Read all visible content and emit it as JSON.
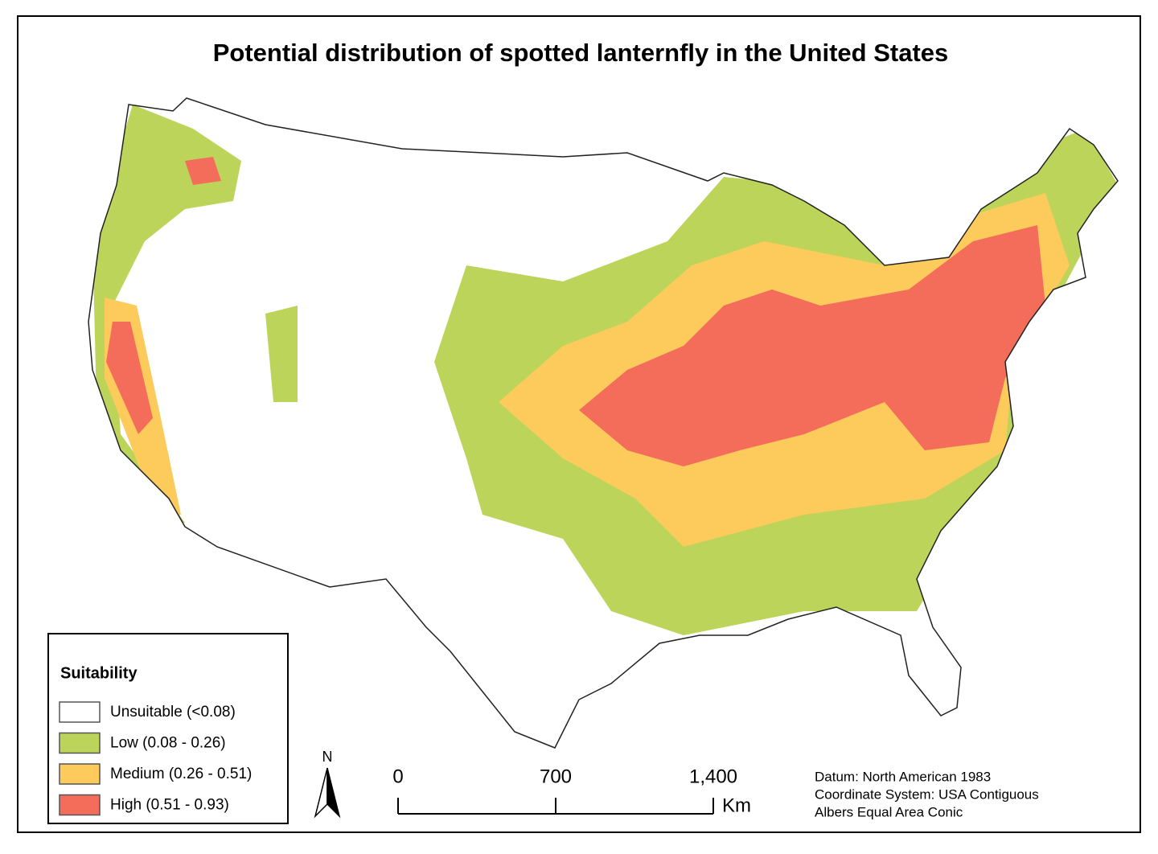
{
  "title": "Potential distribution of spotted lanternfly in the United States",
  "legend": {
    "title": "Suitability",
    "items": [
      {
        "label": "Unsuitable (<0.08)",
        "color": "#ffffff"
      },
      {
        "label": "Low (0.08 - 0.26)",
        "color": "#bcd45a"
      },
      {
        "label": "Medium (0.26 - 0.51)",
        "color": "#fdca5c"
      },
      {
        "label": "High (0.51 - 0.93)",
        "color": "#f46d5a"
      }
    ]
  },
  "north_arrow": "N",
  "scale_bar": {
    "ticks": [
      0,
      700,
      {
        "value": 1400,
        "label": "1,400"
      }
    ],
    "unit": "Km"
  },
  "notes": [
    "Datum: North American 1983",
    "Coordinate System: USA Contiguous",
    "Albers Equal Area Conic"
  ]
}
